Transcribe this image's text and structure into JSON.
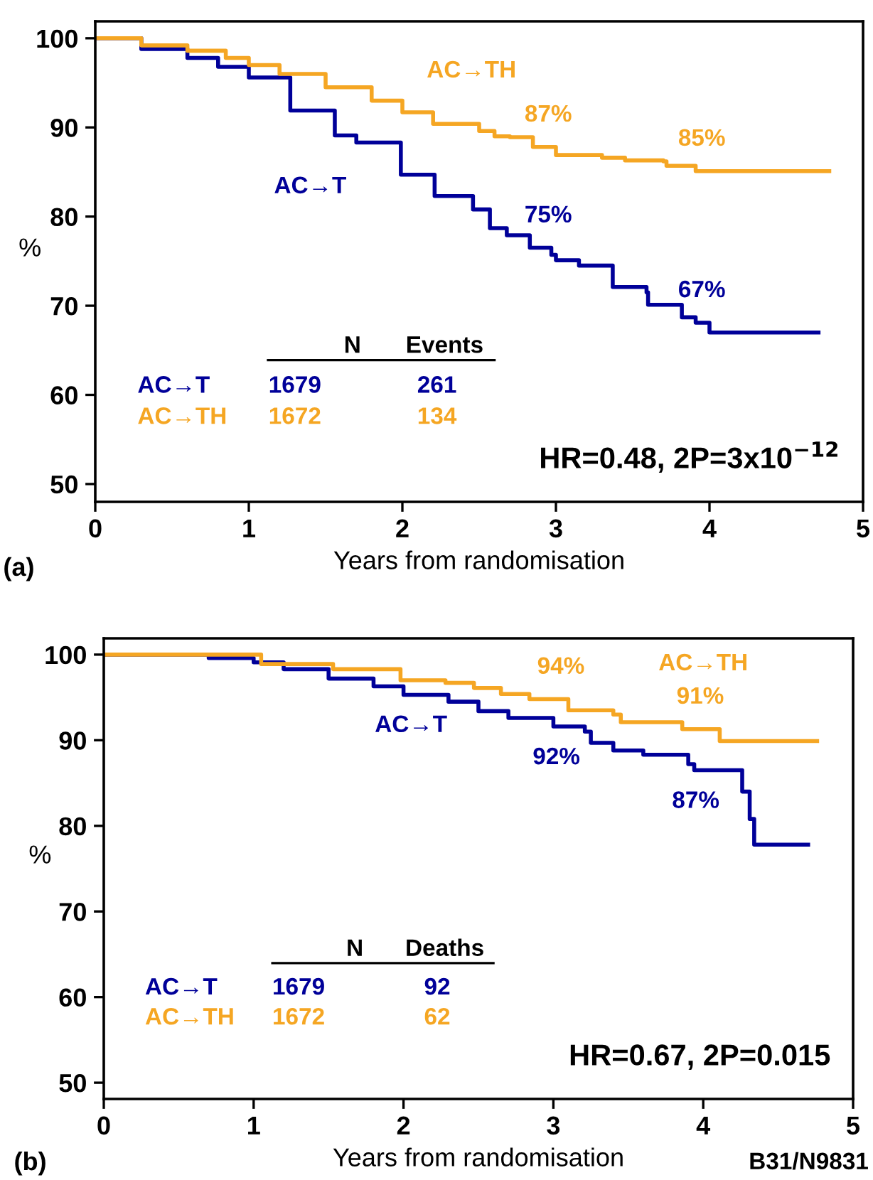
{
  "chart_data": [
    {
      "type": "step",
      "xlabel": "Years from randomisation",
      "ylabel": "%",
      "xlim": [
        0,
        5
      ],
      "ylim": [
        48,
        101.9
      ],
      "xticks": [
        0,
        1,
        2,
        3,
        4,
        5
      ],
      "yticks": [
        50,
        60,
        70,
        80,
        90,
        100
      ],
      "grid": false,
      "series": [
        {
          "name": "AC→T",
          "color": "#000099",
          "x": [
            0,
            0.3,
            0.6,
            0.8,
            1.0,
            1.27,
            1.56,
            1.7,
            1.99,
            2.21,
            2.46,
            2.57,
            2.68,
            2.83,
            2.97,
            3.0,
            3.15,
            3.37,
            3.37,
            3.59,
            3.6,
            3.8,
            3.82,
            3.91,
            4.0,
            4.71
          ],
          "values": [
            100,
            98.8,
            97.8,
            96.8,
            95.6,
            91.9,
            89.1,
            88.3,
            84.7,
            82.3,
            80.8,
            78.7,
            77.9,
            76.5,
            75.7,
            75.1,
            74.5,
            73.2,
            72.1,
            71.5,
            70.1,
            70.1,
            68.7,
            68.1,
            67.0,
            67.0
          ]
        },
        {
          "name": "AC→TH",
          "color": "#f5a623",
          "x": [
            0,
            0.3,
            0.6,
            0.85,
            1.0,
            1.2,
            1.5,
            1.8,
            2.0,
            2.2,
            2.5,
            2.6,
            2.7,
            2.85,
            3.0,
            3.3,
            3.45,
            3.7,
            3.72,
            3.9,
            3.91,
            4.78
          ],
          "values": [
            100,
            99.2,
            98.6,
            97.8,
            97,
            96,
            94.5,
            93,
            91.7,
            90.4,
            89.6,
            89,
            88.9,
            87.8,
            86.9,
            86.6,
            86.3,
            86.2,
            85.7,
            85.7,
            85.1,
            85.1
          ]
        }
      ],
      "annotations": [
        {
          "text": "87%",
          "x": 2.95,
          "y": 87.8
        },
        {
          "text": "85%",
          "x": 3.95,
          "y": 85.1
        },
        {
          "text": "75%",
          "x": 2.95,
          "y": 76.5
        },
        {
          "text": "67%",
          "x": 3.95,
          "y": 68.1
        },
        "N",
        "Events",
        "AC→T",
        "1679",
        "261",
        "AC→TH",
        "1672",
        "134",
        "HR=0.48, 2P=3x10$^{−12}$",
        "(a)"
      ]
    },
    {
      "type": "step",
      "xlabel": "Years from randomisation",
      "ylabel": "%",
      "xlim": [
        0,
        5
      ],
      "ylim": [
        48.1,
        101.9
      ],
      "xticks": [
        0,
        1,
        2,
        3,
        4,
        5
      ],
      "yticks": [
        50,
        60,
        70,
        80,
        90,
        100
      ],
      "grid": false,
      "series": [
        {
          "name": "AC→T",
          "color": "#000099",
          "x": [
            0,
            0.7,
            1.0,
            1.2,
            1.5,
            1.8,
            2.0,
            2.3,
            2.5,
            2.7,
            3.0,
            3.21,
            3.25,
            3.4,
            3.6,
            3.85,
            3.9,
            3.94,
            4.25,
            4.26,
            4.31,
            4.34,
            4.7
          ],
          "values": [
            100,
            99.6,
            99.1,
            98.3,
            97.2,
            96.3,
            95.3,
            94.5,
            93.4,
            92.6,
            91.6,
            91.0,
            89.7,
            88.8,
            88.3,
            88.3,
            87.2,
            86.5,
            86.5,
            84,
            80.8,
            77.8,
            77.8
          ]
        },
        {
          "name": "AC→TH",
          "color": "#f5a623",
          "x": [
            0,
            1.05,
            1.53,
            1.98,
            2.28,
            2.47,
            2.65,
            2.84,
            3.1,
            3.4,
            3.45,
            3.85,
            3.86,
            4.1,
            4.11,
            4.76
          ],
          "values": [
            100,
            98.9,
            98.3,
            97.0,
            96.7,
            96.1,
            95.4,
            94.8,
            93.5,
            93.0,
            92.1,
            92.1,
            91.3,
            91.3,
            89.9,
            89.9
          ]
        }
      ],
      "annotations": [
        {
          "text": "94%",
          "x": 3.05,
          "y": 94.8
        },
        {
          "text": "91%",
          "x": 3.98,
          "y": 91.3
        },
        {
          "text": "92%",
          "x": 3.02,
          "y": 91.6
        },
        {
          "text": "87%",
          "x": 3.95,
          "y": 86.5
        },
        "N",
        "Deaths",
        "AC→T",
        "1679",
        "92",
        "AC→TH",
        "1672",
        "62",
        "HR=0.67, 2P=0.015",
        "(b)",
        "B31/N9831"
      ]
    }
  ]
}
